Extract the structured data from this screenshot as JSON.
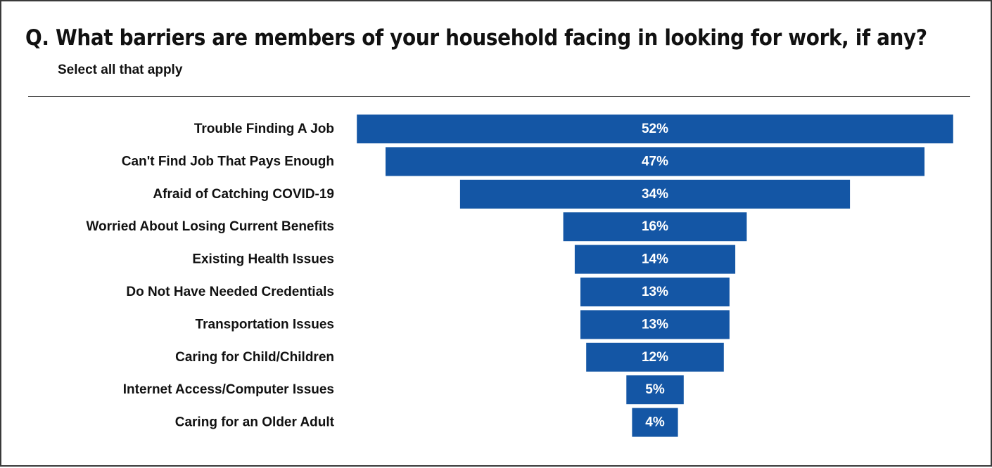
{
  "header": {
    "title": "Q. What barriers are members of your household facing in looking for work, if any?",
    "subtitle": "Select all that apply"
  },
  "colors": {
    "bar": "#1456a5",
    "text": "#111111",
    "value_text": "#ffffff",
    "border": "#3a3a3a"
  },
  "chart_data": {
    "type": "bar",
    "orientation": "horizontal",
    "style": "funnel-centered",
    "categories": [
      "Trouble Finding A Job",
      "Can't Find Job That Pays Enough",
      "Afraid of Catching COVID-19",
      "Worried About Losing Current Benefits",
      "Existing Health Issues",
      "Do Not Have Needed Credentials",
      "Transportation Issues",
      "Caring for Child/Children",
      "Internet Access/Computer Issues",
      "Caring for an Older Adult"
    ],
    "values": [
      52,
      47,
      34,
      16,
      14,
      13,
      13,
      12,
      5,
      4
    ],
    "value_labels": [
      "52%",
      "47%",
      "34%",
      "16%",
      "14%",
      "13%",
      "13%",
      "12%",
      "5%",
      "4%"
    ],
    "title": "",
    "xlabel": "",
    "ylabel": "",
    "grid": false,
    "legend": "none"
  }
}
